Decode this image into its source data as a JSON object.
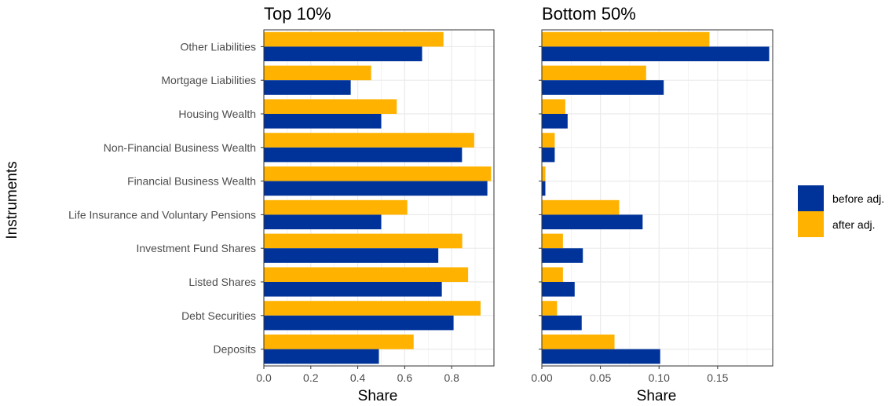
{
  "colors": {
    "before": "#00339A",
    "after": "#FFB300",
    "grid": "#EBEBEB",
    "border": "#333333"
  },
  "chart_data": [
    {
      "type": "bar",
      "orientation": "horizontal",
      "title": "Top 10%",
      "xlabel": "Share",
      "ylabel": "Instruments",
      "xlim": [
        0,
        0.98
      ],
      "x_ticks": [
        "0.0",
        "0.2",
        "0.4",
        "0.6",
        "0.8"
      ],
      "grid": true,
      "categories": [
        "Other Liabilities",
        "Mortgage Liabilities",
        "Housing Wealth",
        "Non-Financial Business Wealth",
        "Financial Business Wealth",
        "Life Insurance and Voluntary Pensions",
        "Investment Fund Shares",
        "Listed Shares",
        "Debt Securities",
        "Deposits"
      ],
      "series": [
        {
          "name": "before adj.",
          "values": [
            0.674,
            0.37,
            0.5,
            0.844,
            0.952,
            0.5,
            0.743,
            0.758,
            0.808,
            0.49
          ]
        },
        {
          "name": "after adj.",
          "values": [
            0.765,
            0.457,
            0.566,
            0.896,
            0.968,
            0.611,
            0.845,
            0.87,
            0.923,
            0.638
          ]
        }
      ]
    },
    {
      "type": "bar",
      "orientation": "horizontal",
      "title": "Bottom 50%",
      "xlabel": "Share",
      "ylabel": "Instruments",
      "xlim": [
        0,
        0.197
      ],
      "x_ticks": [
        "0.00",
        "0.05",
        "0.10",
        "0.15"
      ],
      "grid": true,
      "categories": [
        "Other Liabilities",
        "Mortgage Liabilities",
        "Housing Wealth",
        "Non-Financial Business Wealth",
        "Financial Business Wealth",
        "Life Insurance and Voluntary Pensions",
        "Investment Fund Shares",
        "Listed Shares",
        "Debt Securities",
        "Deposits"
      ],
      "series": [
        {
          "name": "before adj.",
          "values": [
            0.194,
            0.104,
            0.022,
            0.011,
            0.003,
            0.086,
            0.035,
            0.028,
            0.034,
            0.101
          ]
        },
        {
          "name": "after adj.",
          "values": [
            0.143,
            0.089,
            0.02,
            0.011,
            0.003,
            0.066,
            0.018,
            0.018,
            0.013,
            0.062
          ]
        }
      ]
    }
  ],
  "legend": {
    "position": "right",
    "items": [
      {
        "label": "before adj.",
        "color": "#00339A"
      },
      {
        "label": "after adj.",
        "color": "#FFB300"
      }
    ]
  }
}
